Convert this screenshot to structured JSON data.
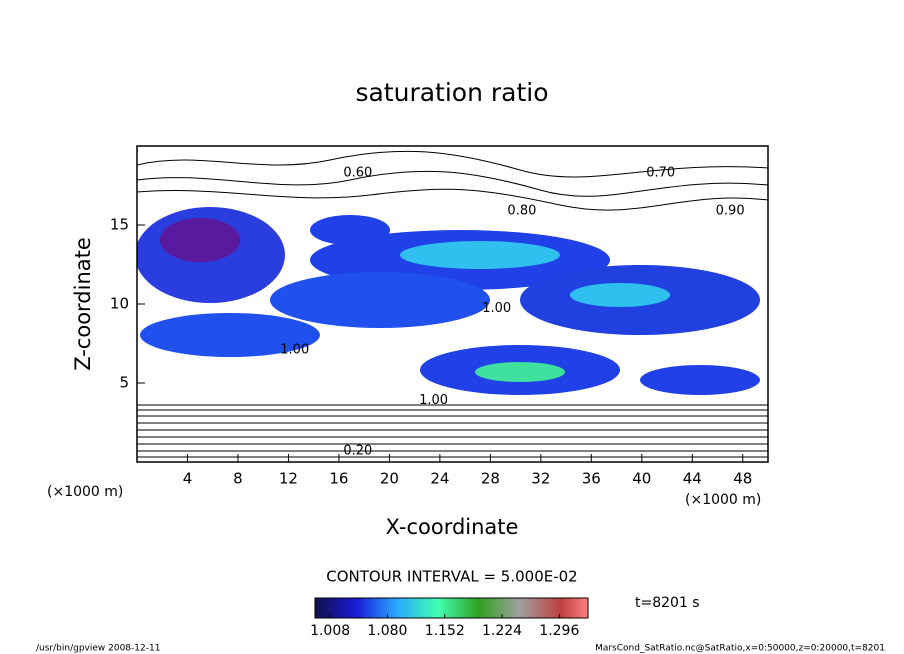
{
  "chart_data": {
    "type": "contour",
    "title": "saturation ratio",
    "x_label": "X-coordinate",
    "y_label": "Z-coordinate",
    "x_unit": "(×1000 m)",
    "y_unit": "(×1000 m)",
    "xlim": [
      0,
      50
    ],
    "ylim": [
      0,
      20
    ],
    "xticks": [
      4,
      8,
      12,
      16,
      20,
      24,
      28,
      32,
      36,
      40,
      44,
      48
    ],
    "yticks": [
      5,
      10,
      15
    ],
    "contour_labels": [
      {
        "label": "0.60",
        "x": 17.5,
        "z": 18.3
      },
      {
        "label": "0.70",
        "x": 41.5,
        "z": 18.3
      },
      {
        "label": "0.80",
        "x": 30.5,
        "z": 15.9
      },
      {
        "label": "0.90",
        "x": 47,
        "z": 15.9
      },
      {
        "label": "1.00",
        "x": 28.5,
        "z": 9.7
      },
      {
        "label": "1.00",
        "x": 12.5,
        "z": 7.1
      },
      {
        "label": "1.00",
        "x": 23.5,
        "z": 3.9
      },
      {
        "label": "0.20",
        "x": 17.5,
        "z": 0.7
      }
    ],
    "contour_interval": "CONTOUR INTERVAL = 5.000E-02",
    "colorbar": {
      "lim": [
        0.989,
        1.332
      ],
      "ticks": [
        {
          "value": 1.008,
          "label": "1.008"
        },
        {
          "value": 1.08,
          "label": "1.080"
        },
        {
          "value": 1.152,
          "label": "1.152"
        },
        {
          "value": 1.224,
          "label": "1.224"
        },
        {
          "value": 1.296,
          "label": "1.296"
        }
      ]
    },
    "time_label": "t=8201 s",
    "footer_left": "/usr/bin/gpview   2008-12-11",
    "footer_right": "MarsCond_SatRatio.nc@SatRatio,x=0:50000,z=0:20000,t=8201"
  }
}
